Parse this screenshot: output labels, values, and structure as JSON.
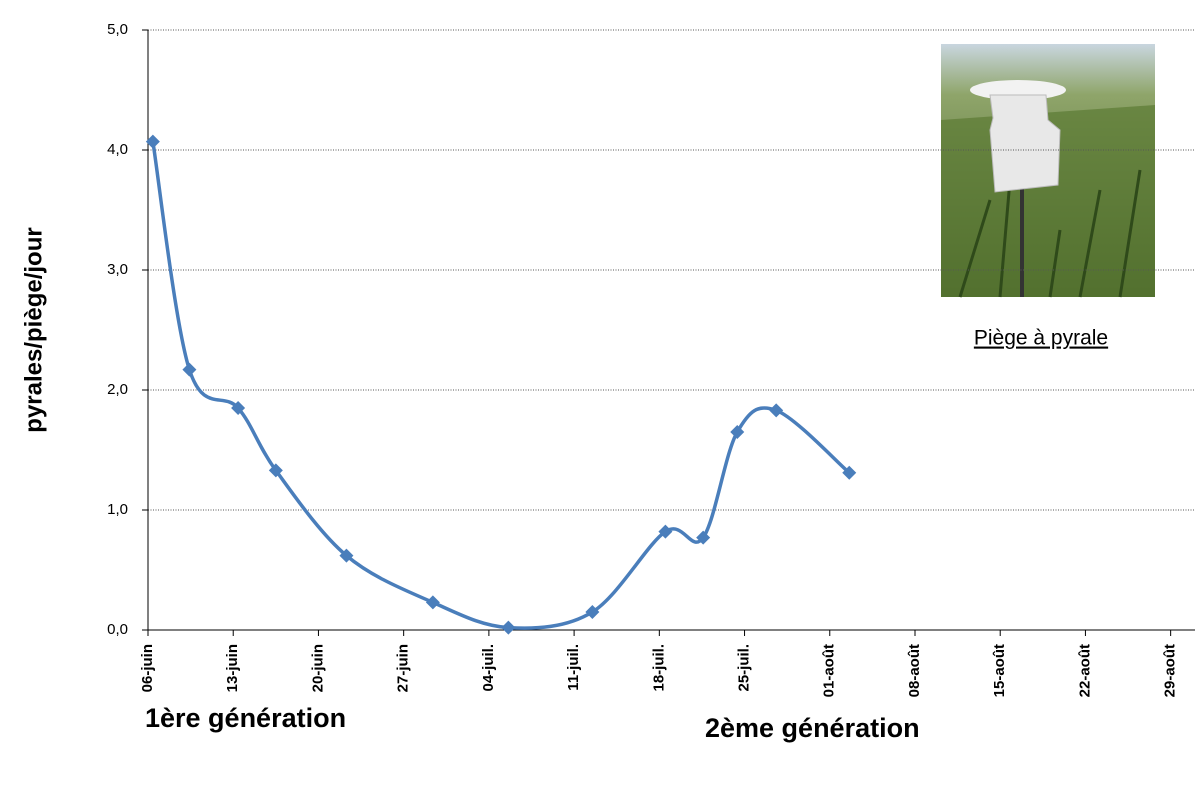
{
  "chart_data": {
    "type": "line",
    "y_label": "pyrales/piège/jour",
    "annotations": [
      "Piège à pyrale",
      "1ère génération",
      "2ème génération"
    ],
    "x": [
      0.4,
      3.4,
      7.4,
      10.5,
      16.3,
      23.4,
      29.6,
      36.5,
      42.5,
      45.6,
      48.4,
      51.6,
      57.6
    ],
    "series": [
      {
        "name": "pyrales/piège/jour",
        "color": "#4a7ebb",
        "values": [
          4.07,
          2.17,
          1.85,
          1.33,
          0.62,
          0.23,
          0.02,
          0.15,
          0.82,
          0.77,
          1.65,
          1.83,
          1.31
        ]
      }
    ],
    "xlim": [
      0,
      86
    ],
    "xticks": [
      {
        "value": 0,
        "label": "06-juin"
      },
      {
        "value": 7,
        "label": "13-juin"
      },
      {
        "value": 14,
        "label": "20-juin"
      },
      {
        "value": 21,
        "label": "27-juin"
      },
      {
        "value": 28,
        "label": "04-juil."
      },
      {
        "value": 35,
        "label": "11-juil."
      },
      {
        "value": 42,
        "label": "18-juil."
      },
      {
        "value": 49,
        "label": "25-juil."
      },
      {
        "value": 56,
        "label": "01-août"
      },
      {
        "value": 63,
        "label": "08-août"
      },
      {
        "value": 70,
        "label": "15-août"
      },
      {
        "value": 77,
        "label": "22-août"
      },
      {
        "value": 84,
        "label": "29-août"
      }
    ],
    "ylim": [
      0,
      5
    ],
    "yticks": [
      {
        "value": 0,
        "label": "0,0"
      },
      {
        "value": 1,
        "label": "1,0"
      },
      {
        "value": 2,
        "label": "2,0"
      },
      {
        "value": 3,
        "label": "3,0"
      },
      {
        "value": 4,
        "label": "4,0"
      },
      {
        "value": 5,
        "label": "5,0"
      }
    ],
    "grid": true
  }
}
